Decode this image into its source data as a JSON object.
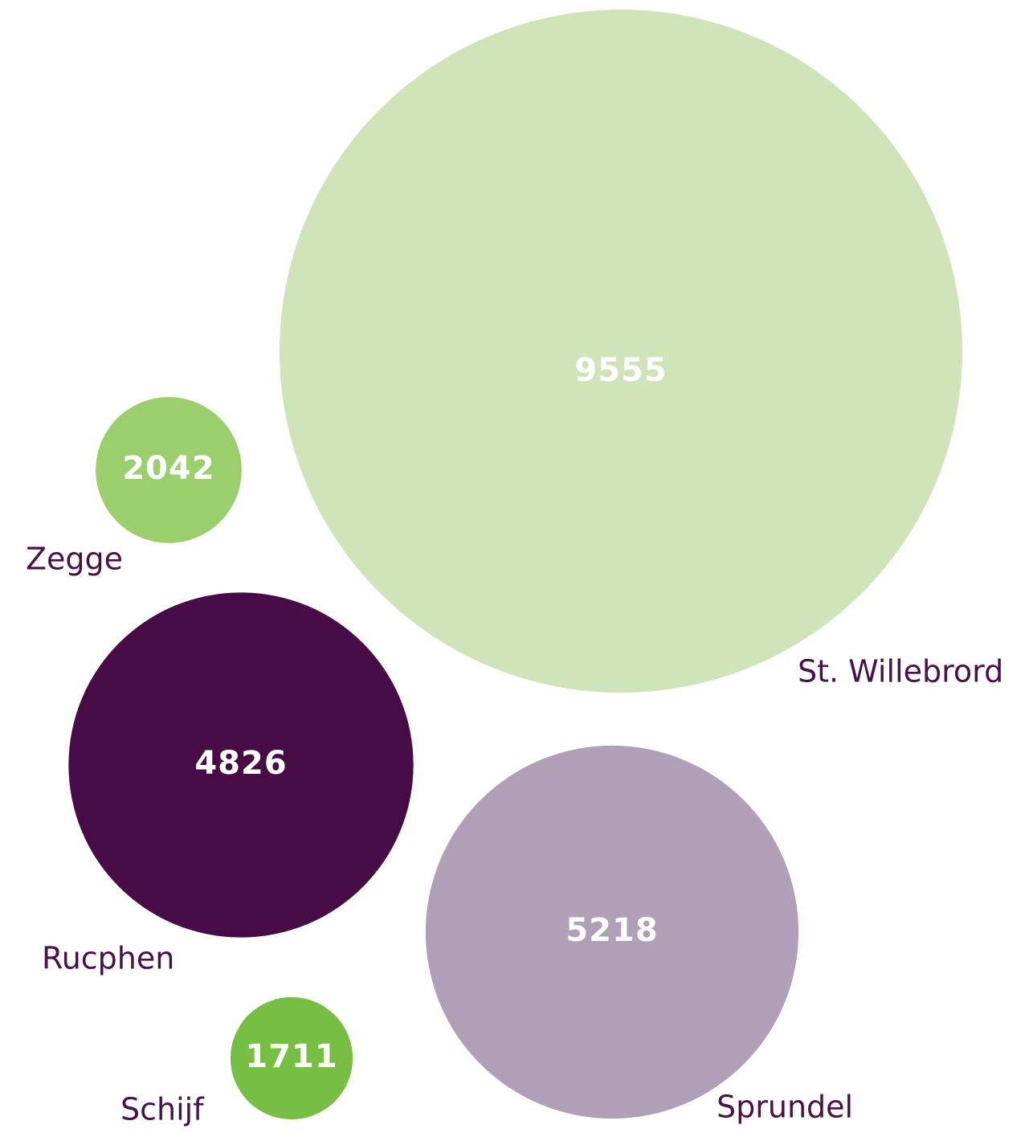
{
  "chart_data": {
    "type": "bubble",
    "categories": [
      "St. Willebrord",
      "Zegge",
      "Rucphen",
      "Sprundel",
      "Schijf"
    ],
    "values": [
      9555,
      2042,
      4826,
      5218,
      1711
    ],
    "colors": [
      "#cfe4b9",
      "#9bcf6e",
      "#470c46",
      "#b09fb7",
      "#77bf43"
    ],
    "label_color": "#4a1048"
  }
}
